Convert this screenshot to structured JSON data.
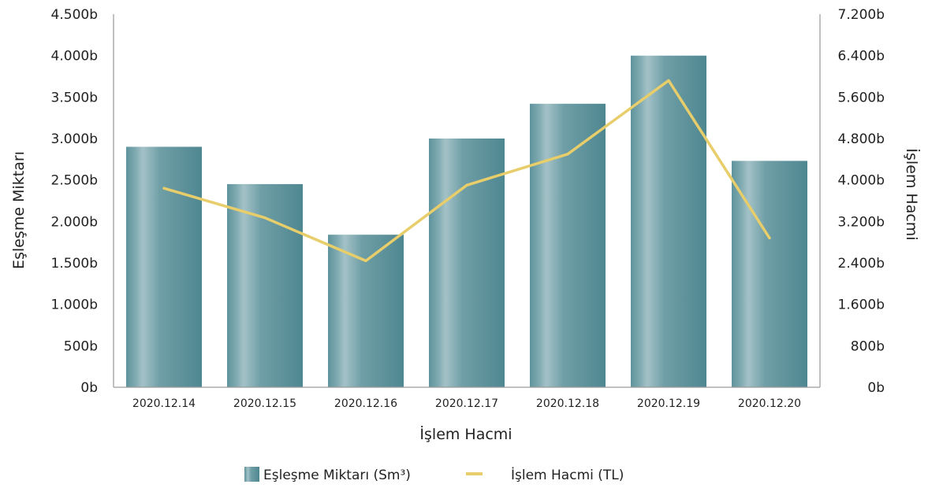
{
  "chart_data": {
    "type": "bar+line",
    "title": "",
    "xlabel": "İşlem Hacmi",
    "ylabel_left": "Eşleşme Miktarı",
    "ylabel_right": "İşlem Hacmi",
    "categories": [
      "2020.12.14",
      "2020.12.15",
      "2020.12.16",
      "2020.12.17",
      "2020.12.18",
      "2020.12.19",
      "2020.12.20"
    ],
    "ylim_left": [
      0,
      4500
    ],
    "ylim_right": [
      0,
      7200
    ],
    "yticks_left": [
      "0b",
      "500b",
      "1.000b",
      "1.500b",
      "2.000b",
      "2.500b",
      "3.000b",
      "3.500b",
      "4.000b",
      "4.500b"
    ],
    "yticks_right": [
      "0b",
      "800b",
      "1.600b",
      "2.400b",
      "3.200b",
      "4.000b",
      "4.800b",
      "5.600b",
      "6.400b",
      "7.200b"
    ],
    "series": [
      {
        "name": "Eşleşme Miktarı (Sm³)",
        "type": "bar",
        "axis": "left",
        "color": "#5a8f99",
        "values": [
          2900,
          2450,
          1840,
          3000,
          3420,
          4000,
          2730
        ]
      },
      {
        "name": "İşlem Hacmi (TL)",
        "type": "line",
        "axis": "right",
        "color": "#e8cd6b",
        "values": [
          3840,
          3270,
          2440,
          3900,
          4500,
          5920,
          2880
        ]
      }
    ],
    "legend": "bottom-center",
    "grid": false
  }
}
